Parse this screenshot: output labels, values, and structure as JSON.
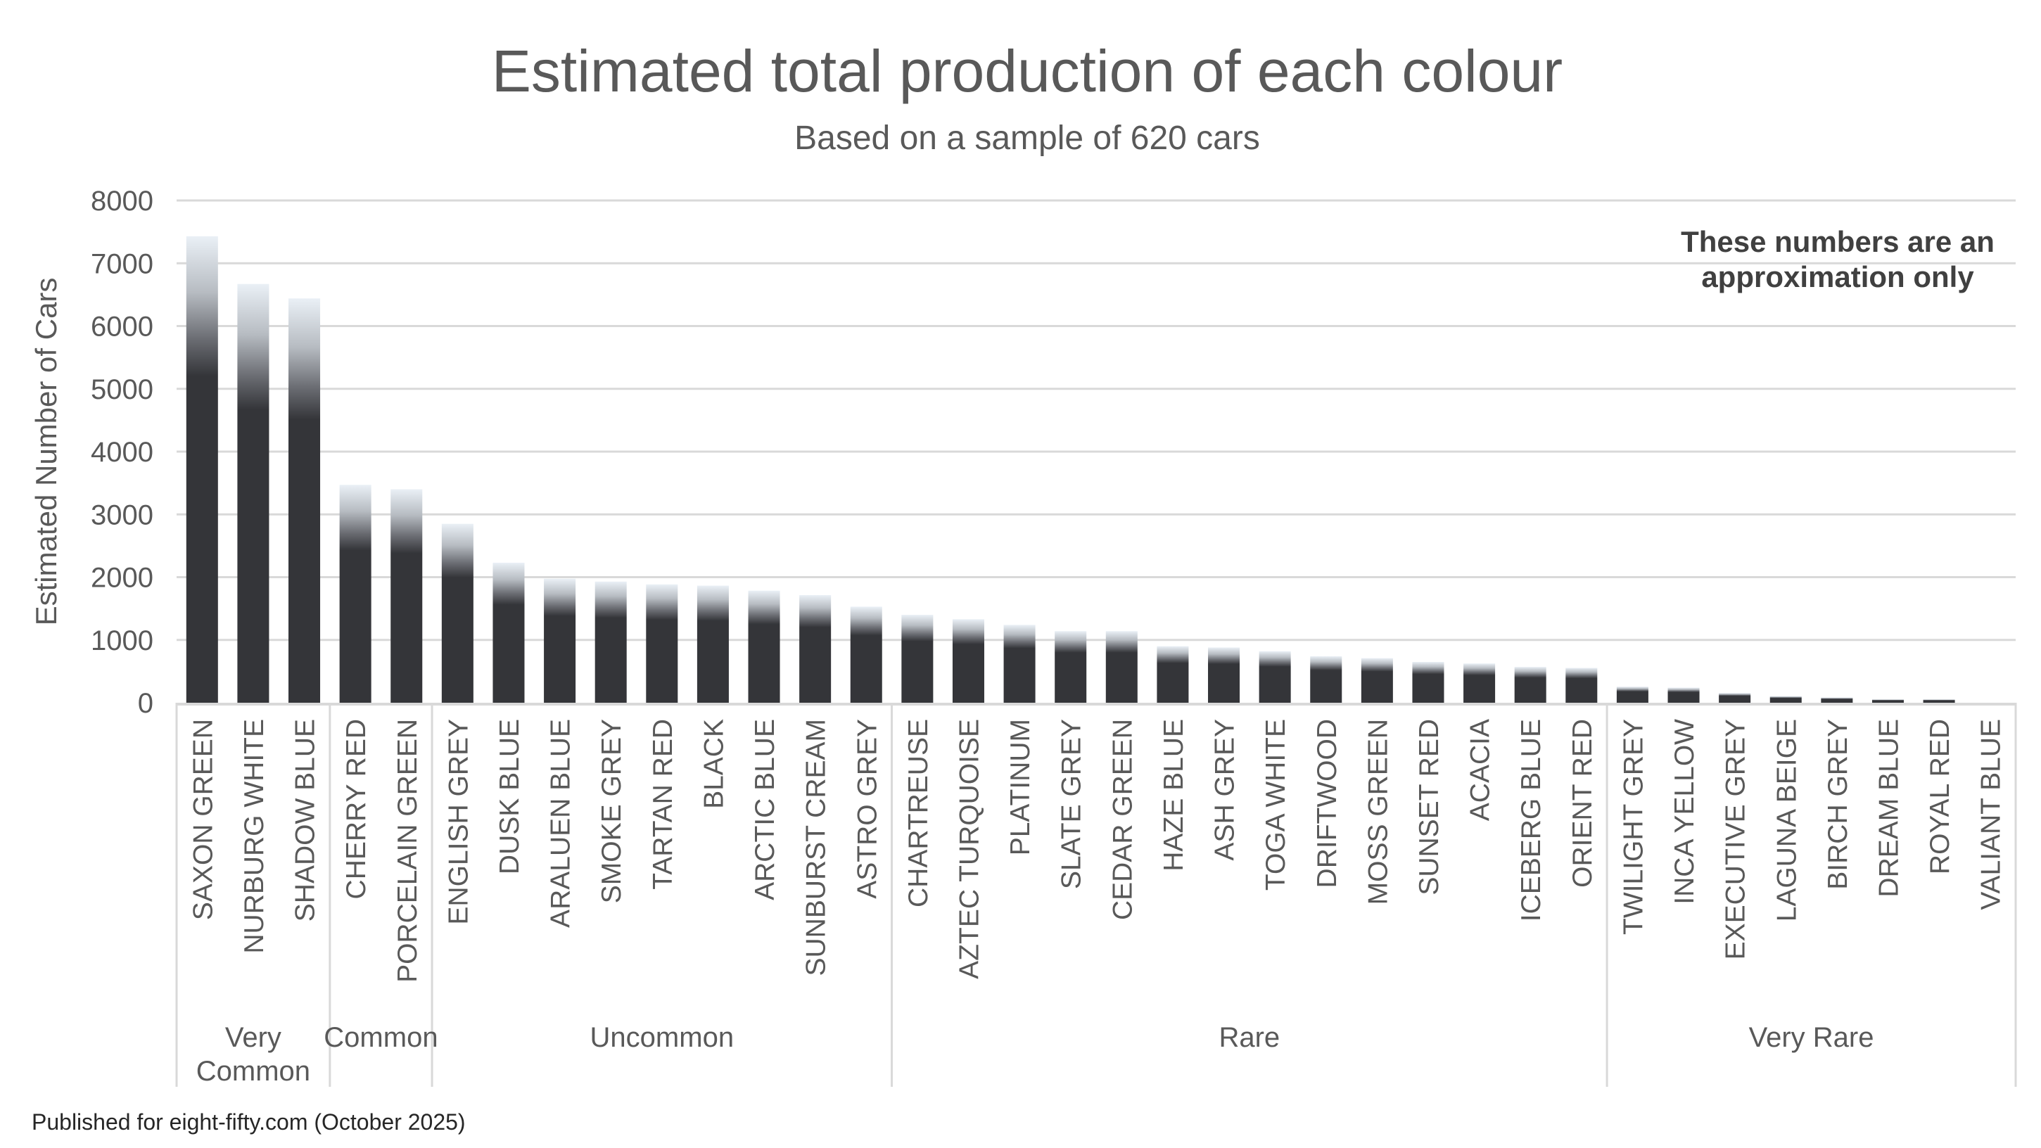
{
  "chart_data": {
    "type": "bar",
    "title": "Estimated total production of each colour",
    "subtitle": "Based on a sample of 620 cars",
    "ylabel": "Estimated Number of Cars",
    "xlabel": "",
    "ylim": [
      0,
      8000
    ],
    "yticks": [
      0,
      1000,
      2000,
      3000,
      4000,
      5000,
      6000,
      7000,
      8000
    ],
    "grid": true,
    "categories": [
      "SAXON GREEN",
      "NURBURG WHITE",
      "SHADOW BLUE",
      "CHERRY RED",
      "PORCELAIN GREEN",
      "ENGLISH GREY",
      "DUSK BLUE",
      "ARALUEN BLUE",
      "SMOKE GREY",
      "TARTAN RED",
      "BLACK",
      "ARCTIC BLUE",
      "SUNBURST CREAM",
      "ASTRO GREY",
      "CHARTREUSE",
      "AZTEC TURQUOISE",
      "PLATINUM",
      "SLATE GREY",
      "CEDAR GREEN",
      "HAZE BLUE",
      "ASH GREY",
      "TOGA WHITE",
      "DRIFTWOOD",
      "MOSS GREEN",
      "SUNSET RED",
      "ACACIA",
      "ICEBERG BLUE",
      "ORIENT RED",
      "TWILIGHT GREY",
      "INCA YELLOW",
      "EXECUTIVE GREY",
      "LAGUNA BEIGE",
      "BIRCH GREY",
      "DREAM BLUE",
      "ROYAL RED",
      "VALIANT BLUE"
    ],
    "values": [
      7430,
      6670,
      6440,
      3470,
      3400,
      2850,
      2230,
      1975,
      1930,
      1885,
      1865,
      1785,
      1715,
      1530,
      1400,
      1330,
      1240,
      1140,
      1140,
      900,
      880,
      820,
      740,
      710,
      650,
      625,
      570,
      555,
      255,
      240,
      155,
      105,
      83,
      53,
      53,
      0
    ],
    "groups": [
      {
        "lines": [
          "Very",
          "Common"
        ],
        "count": 3
      },
      {
        "lines": [
          "Common"
        ],
        "count": 2
      },
      {
        "lines": [
          "Uncommon"
        ],
        "count": 9
      },
      {
        "lines": [
          "Rare"
        ],
        "count": 14
      },
      {
        "lines": [
          "Very Rare"
        ],
        "count": 8
      }
    ],
    "annotation": [
      "These numbers are an",
      "approximation only"
    ],
    "colors": {
      "bar_dark": "#343539",
      "bar_light": "#eaf0f6",
      "grid": "#d9d9d9",
      "text": "#595959"
    }
  },
  "footer": "Published for eight-fifty.com (October 2025)"
}
